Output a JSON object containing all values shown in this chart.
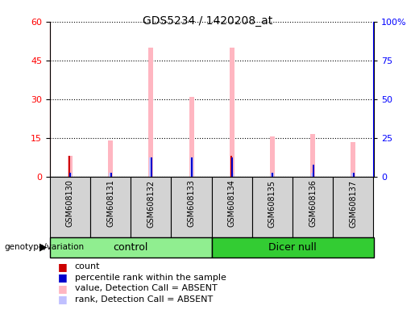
{
  "title": "GDS5234 / 1420208_at",
  "samples": [
    "GSM608130",
    "GSM608131",
    "GSM608132",
    "GSM608133",
    "GSM608134",
    "GSM608135",
    "GSM608136",
    "GSM608137"
  ],
  "groups": [
    {
      "name": "control",
      "indices": [
        0,
        1,
        2,
        3
      ],
      "color": "#90EE90"
    },
    {
      "name": "Dicer null",
      "indices": [
        4,
        5,
        6,
        7
      ],
      "color": "#33CC33"
    }
  ],
  "value_absent": [
    8.0,
    14.0,
    50.0,
    31.0,
    50.0,
    15.5,
    16.5,
    13.5
  ],
  "rank_absent": [
    1.5,
    1.5,
    7.5,
    7.5,
    1.5,
    1.5,
    1.5,
    1.5
  ],
  "count": [
    8.0,
    0,
    0,
    0,
    8.0,
    0,
    0,
    0
  ],
  "pct_rank": [
    1.5,
    1.5,
    7.5,
    7.5,
    7.5,
    1.5,
    4.5,
    1.5
  ],
  "left_yticks": [
    0,
    15,
    30,
    45,
    60
  ],
  "right_yticks": [
    0,
    25,
    50,
    75,
    100
  ],
  "right_ytick_labels": [
    "0",
    "25",
    "50",
    "75",
    "100%"
  ],
  "ylim_left": [
    0,
    60
  ],
  "ylim_right": [
    0,
    100
  ],
  "color_value_absent": "#FFB6C1",
  "color_rank_absent": "#C0C0FF",
  "color_count": "#CC0000",
  "color_pct_rank": "#0000CC",
  "plot_bg": "#FFFFFF",
  "cell_bg": "#D3D3D3",
  "label_count": "count",
  "label_pct_rank": "percentile rank within the sample",
  "label_value_absent": "value, Detection Call = ABSENT",
  "label_rank_absent": "rank, Detection Call = ABSENT",
  "genotype_label": "genotype/variation"
}
